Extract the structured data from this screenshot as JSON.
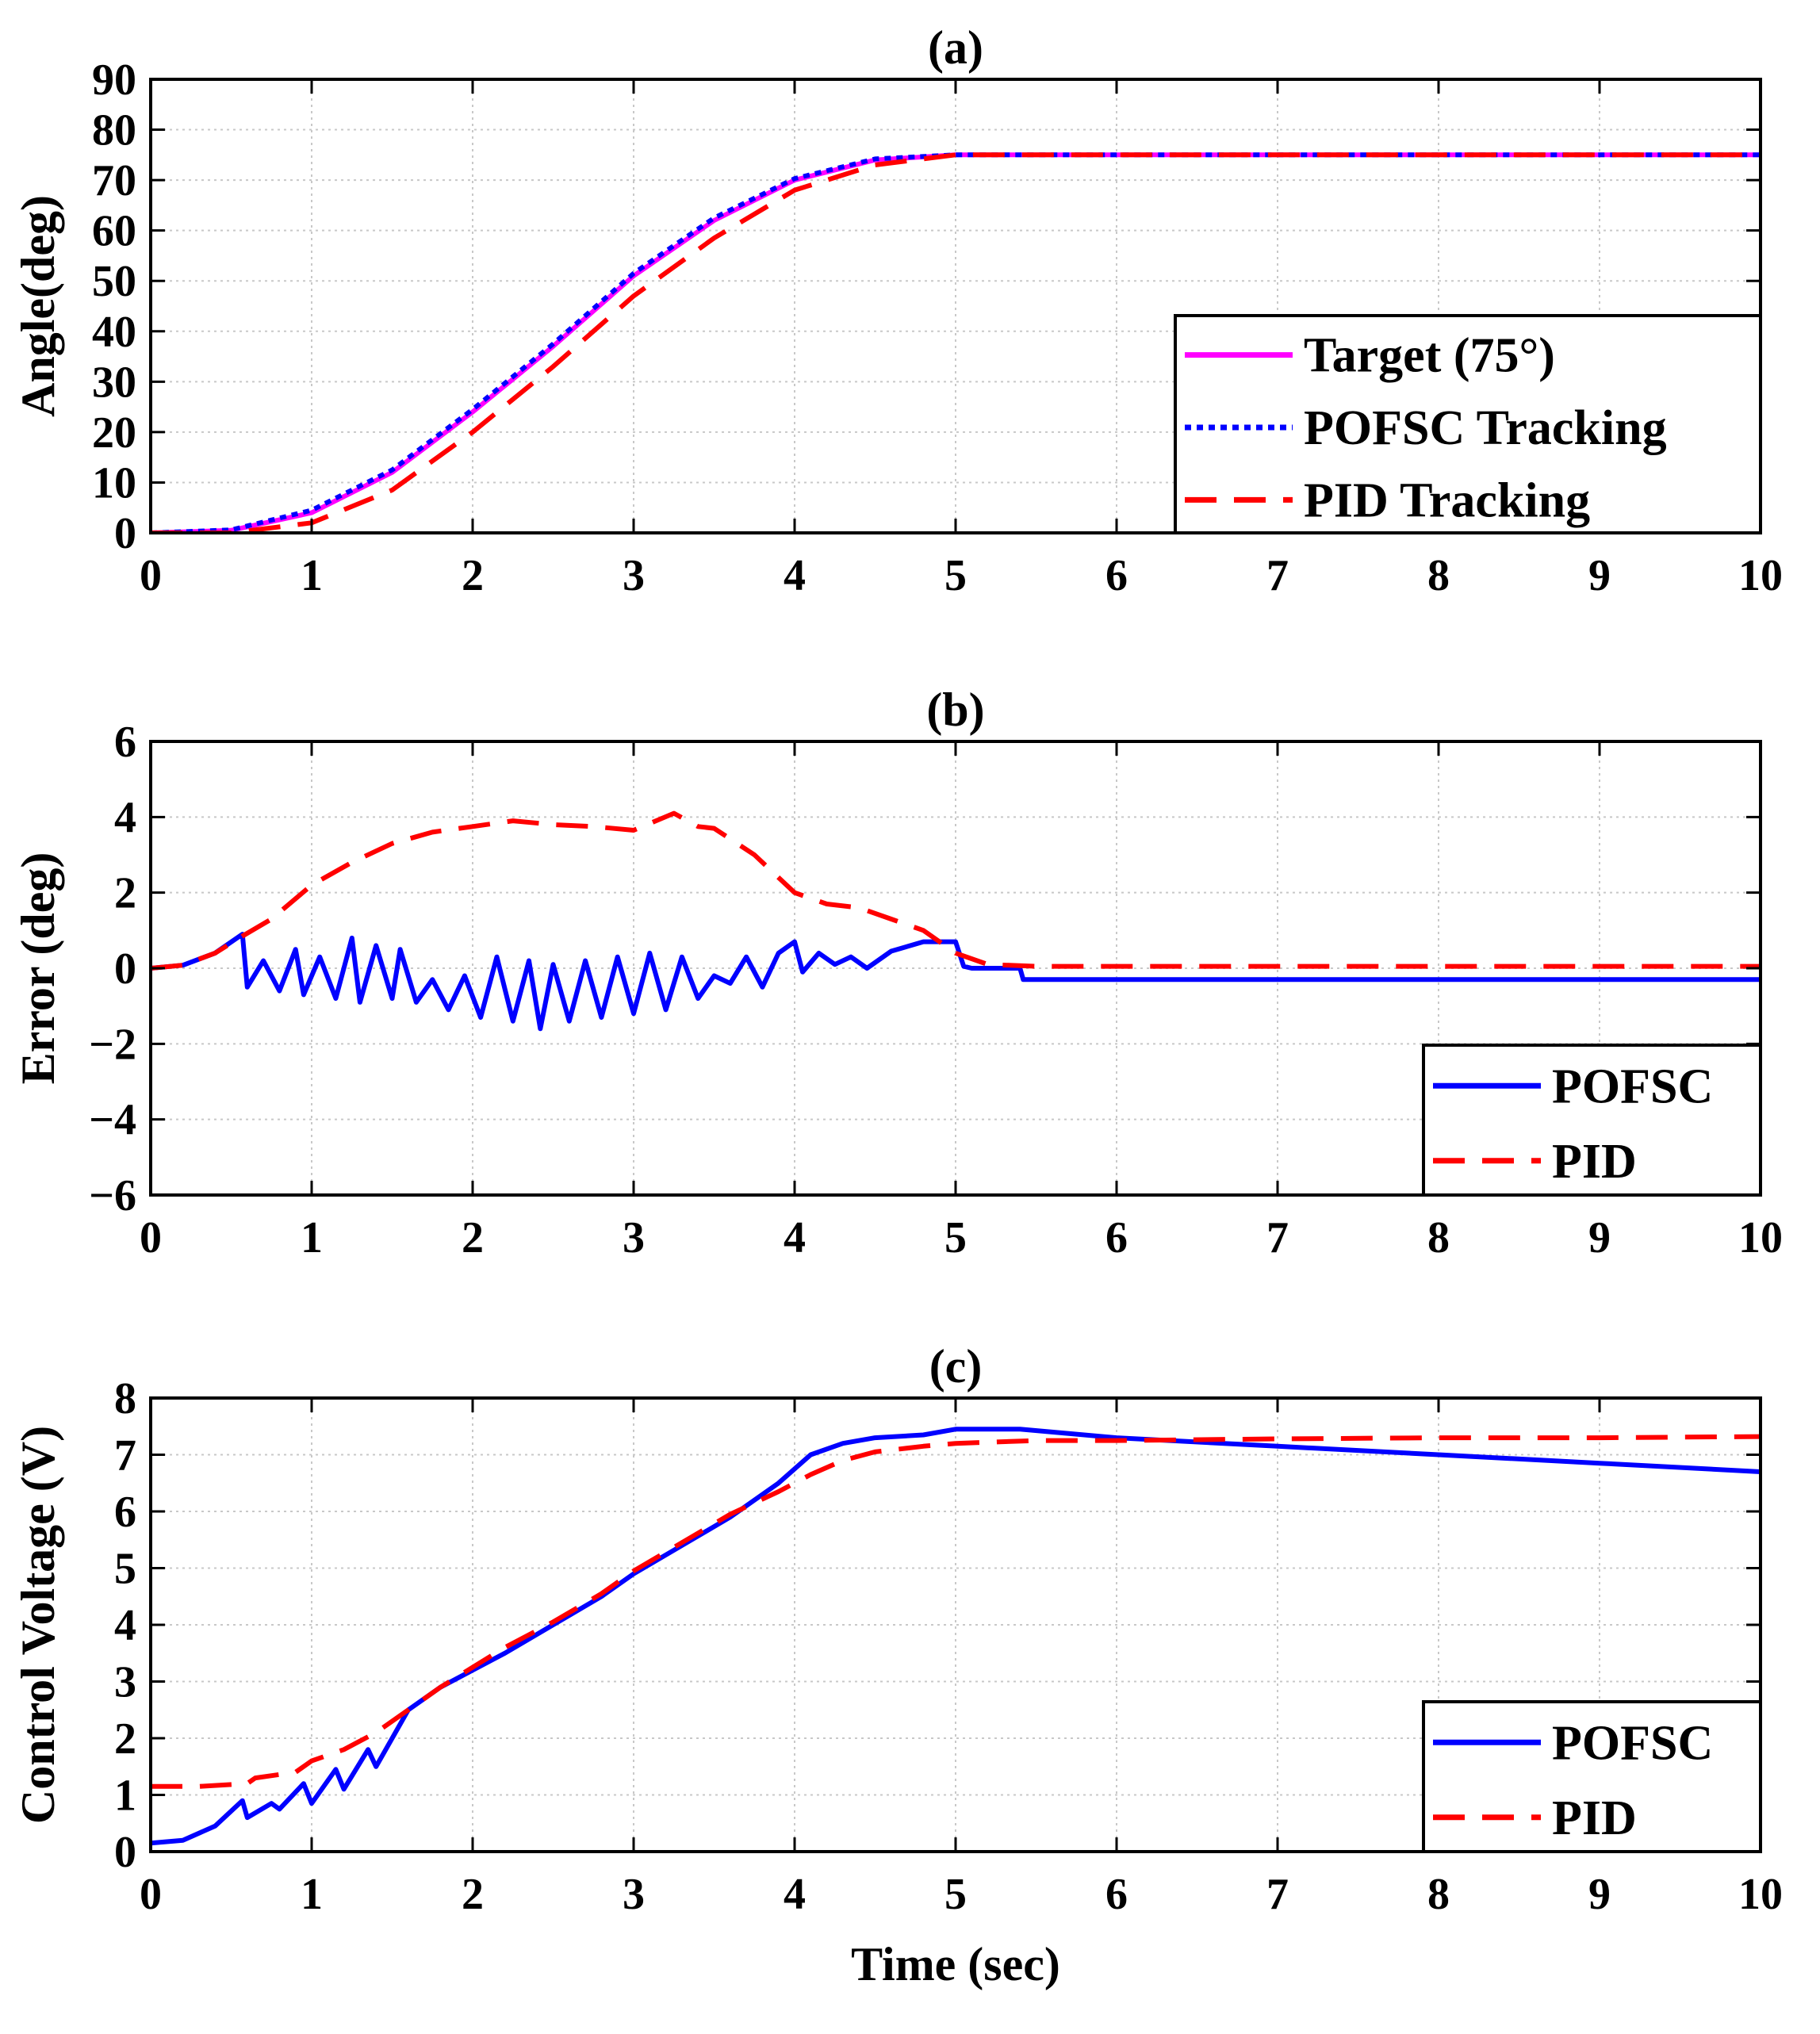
{
  "chart_data": [
    {
      "type": "line",
      "title": "(a)",
      "xlabel": "",
      "ylabel": "Angle(deg)",
      "xlim": [
        0,
        10
      ],
      "ylim": [
        0,
        90
      ],
      "xticks": [
        0,
        1,
        2,
        3,
        4,
        5,
        6,
        7,
        8,
        9,
        10
      ],
      "yticks": [
        0,
        10,
        20,
        30,
        40,
        50,
        60,
        70,
        80,
        90
      ],
      "grid": true,
      "legend_position": "bottom-right",
      "series": [
        {
          "name": "Target (75°)",
          "color": "#ff00ff",
          "style": "solid",
          "x": [
            0,
            0.5,
            1.0,
            1.5,
            2.0,
            2.5,
            3.0,
            3.5,
            4.0,
            4.5,
            5.0,
            6,
            7,
            8,
            9,
            10
          ],
          "y": [
            0,
            0.5,
            4,
            12,
            24,
            37,
            51,
            62,
            70,
            74,
            75,
            75,
            75,
            75,
            75,
            75
          ]
        },
        {
          "name": "POFSC Tracking",
          "color": "#0000ff",
          "style": "dotted",
          "x": [
            0,
            0.5,
            1.0,
            1.5,
            2.0,
            2.5,
            3.0,
            3.5,
            4.0,
            4.5,
            5.0,
            6,
            7,
            8,
            9,
            10
          ],
          "y": [
            0,
            0.6,
            4.5,
            12.5,
            24.5,
            37.5,
            51.5,
            62.5,
            70.3,
            74.2,
            75,
            75,
            75,
            75,
            75,
            75
          ]
        },
        {
          "name": "PID Tracking",
          "color": "#ff0000",
          "style": "dashed",
          "x": [
            0,
            0.5,
            1.0,
            1.5,
            2.0,
            2.5,
            3.0,
            3.5,
            4.0,
            4.5,
            5.0,
            6,
            7,
            8,
            9,
            10
          ],
          "y": [
            0,
            0,
            2,
            8.5,
            20,
            33,
            47,
            58.5,
            68,
            73,
            75,
            75,
            75,
            75,
            75,
            75
          ]
        }
      ]
    },
    {
      "type": "line",
      "title": "(b)",
      "xlabel": "",
      "ylabel": "Error (deg)",
      "xlim": [
        0,
        10
      ],
      "ylim": [
        -6,
        6
      ],
      "xticks": [
        0,
        1,
        2,
        3,
        4,
        5,
        6,
        7,
        8,
        9,
        10
      ],
      "yticks": [
        -6,
        -4,
        -2,
        0,
        2,
        4,
        6
      ],
      "grid": true,
      "legend_position": "bottom-right",
      "series": [
        {
          "name": "POFSC",
          "color": "#0000ff",
          "style": "solid",
          "x": [
            0,
            0.2,
            0.4,
            0.57,
            0.6,
            0.7,
            0.8,
            0.9,
            0.95,
            1.05,
            1.15,
            1.25,
            1.3,
            1.4,
            1.5,
            1.55,
            1.65,
            1.75,
            1.85,
            1.95,
            2.05,
            2.15,
            2.25,
            2.35,
            2.42,
            2.5,
            2.6,
            2.7,
            2.8,
            2.9,
            3.0,
            3.1,
            3.2,
            3.3,
            3.4,
            3.5,
            3.6,
            3.7,
            3.8,
            3.9,
            4.0,
            4.05,
            4.15,
            4.25,
            4.35,
            4.45,
            4.6,
            4.8,
            5.0,
            5.05,
            5.1,
            5.4,
            5.42,
            6,
            7,
            8,
            9,
            10
          ],
          "y": [
            0,
            0.08,
            0.4,
            0.9,
            -0.5,
            0.2,
            -0.6,
            0.5,
            -0.7,
            0.3,
            -0.8,
            0.8,
            -0.9,
            0.6,
            -0.8,
            0.5,
            -0.9,
            -0.3,
            -1.1,
            -0.2,
            -1.3,
            0.3,
            -1.4,
            0.2,
            -1.6,
            0.1,
            -1.4,
            0.2,
            -1.3,
            0.3,
            -1.2,
            0.4,
            -1.1,
            0.3,
            -0.8,
            -0.2,
            -0.4,
            0.3,
            -0.5,
            0.4,
            0.7,
            -0.1,
            0.4,
            0.1,
            0.3,
            0,
            0.45,
            0.7,
            0.7,
            0.05,
            0,
            0,
            -0.3,
            -0.3,
            -0.3,
            -0.3,
            -0.3,
            -0.3
          ]
        },
        {
          "name": "PID",
          "color": "#ff0000",
          "style": "dashed",
          "x": [
            0,
            0.2,
            0.4,
            0.57,
            0.75,
            1.0,
            1.25,
            1.5,
            1.75,
            2.0,
            2.25,
            2.5,
            2.75,
            3.0,
            3.25,
            3.4,
            3.5,
            3.75,
            4.0,
            4.2,
            4.4,
            4.6,
            4.8,
            5.0,
            5.2,
            5.5,
            6,
            7,
            8,
            9,
            10
          ],
          "y": [
            0,
            0.08,
            0.4,
            0.85,
            1.3,
            2.2,
            2.8,
            3.3,
            3.6,
            3.75,
            3.9,
            3.8,
            3.75,
            3.65,
            4.1,
            3.75,
            3.7,
            3.0,
            2.0,
            1.7,
            1.6,
            1.3,
            1.0,
            0.4,
            0.1,
            0.05,
            0.05,
            0.05,
            0.05,
            0.05,
            0.05
          ]
        }
      ]
    },
    {
      "type": "line",
      "title": "(c)",
      "xlabel": "Time (sec)",
      "ylabel": "Control Voltage (V)",
      "xlim": [
        0,
        10
      ],
      "ylim": [
        0,
        8
      ],
      "xticks": [
        0,
        1,
        2,
        3,
        4,
        5,
        6,
        7,
        8,
        9,
        10
      ],
      "yticks": [
        0,
        1,
        2,
        3,
        4,
        5,
        6,
        7,
        8
      ],
      "grid": true,
      "legend_position": "bottom-right",
      "series": [
        {
          "name": "POFSC",
          "color": "#0000ff",
          "style": "solid",
          "x": [
            0,
            0.2,
            0.4,
            0.57,
            0.6,
            0.75,
            0.8,
            0.95,
            1.0,
            1.15,
            1.2,
            1.35,
            1.4,
            1.6,
            1.8,
            2.0,
            2.2,
            2.5,
            2.8,
            3.0,
            3.3,
            3.6,
            3.9,
            4.1,
            4.3,
            4.5,
            4.8,
            5.0,
            5.2,
            5.4,
            6,
            7,
            8,
            9,
            10
          ],
          "y": [
            0.15,
            0.2,
            0.45,
            0.9,
            0.6,
            0.85,
            0.75,
            1.2,
            0.85,
            1.45,
            1.1,
            1.8,
            1.5,
            2.5,
            2.9,
            3.2,
            3.5,
            4.0,
            4.5,
            4.9,
            5.4,
            5.9,
            6.5,
            7.0,
            7.2,
            7.3,
            7.35,
            7.45,
            7.45,
            7.45,
            7.3,
            7.15,
            7.0,
            6.85,
            6.7
          ]
        },
        {
          "name": "PID",
          "color": "#ff0000",
          "style": "dashed",
          "x": [
            0,
            0.3,
            0.6,
            0.65,
            0.9,
            1.0,
            1.2,
            1.4,
            1.6,
            1.8,
            2.0,
            2.2,
            2.5,
            2.8,
            3.0,
            3.3,
            3.6,
            3.9,
            4.1,
            4.3,
            4.5,
            4.8,
            5.0,
            5.2,
            5.5,
            6,
            7,
            8,
            9,
            10
          ],
          "y": [
            1.15,
            1.15,
            1.2,
            1.3,
            1.4,
            1.6,
            1.8,
            2.1,
            2.5,
            2.9,
            3.25,
            3.6,
            4.05,
            4.55,
            4.95,
            5.45,
            5.95,
            6.35,
            6.65,
            6.9,
            7.05,
            7.15,
            7.2,
            7.22,
            7.25,
            7.25,
            7.28,
            7.3,
            7.3,
            7.32
          ]
        }
      ]
    }
  ]
}
